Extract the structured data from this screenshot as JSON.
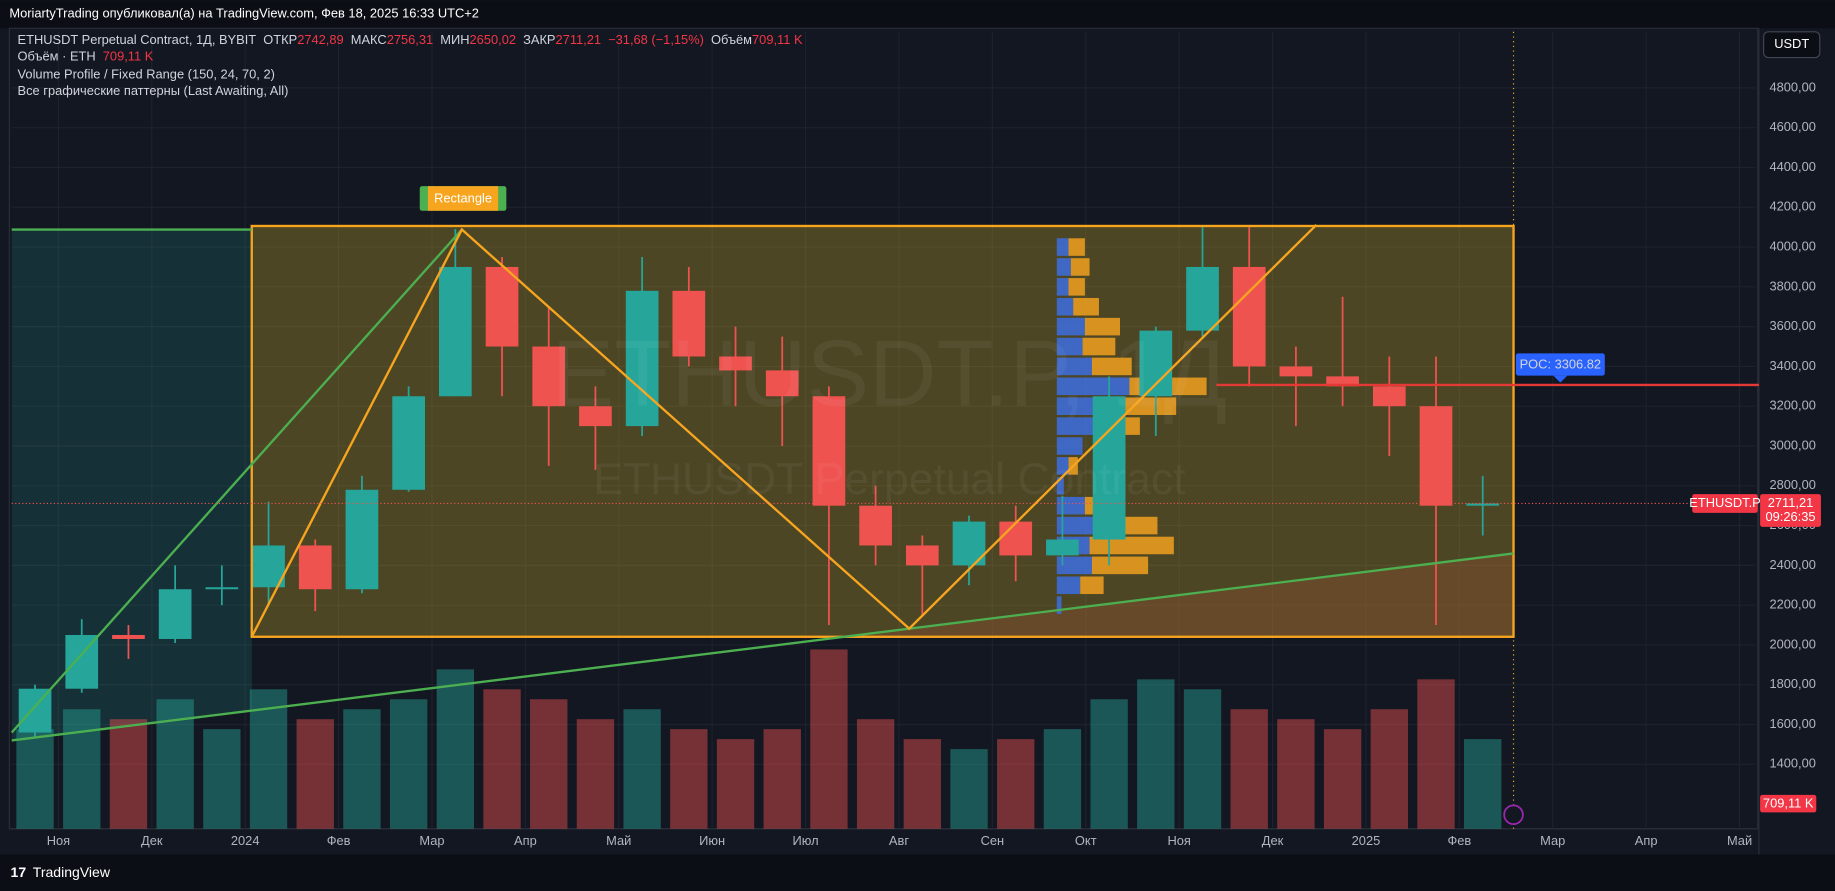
{
  "header": {
    "title": "MoriartyTrading опубликовал(а) на TradingView.com, Фев 18, 2025 16:33 UTC+2"
  },
  "legend": {
    "symbol": "ETHUSDT Perpetual Contract, 1Д, BYBIT",
    "open_label": "ОТКР",
    "open": "2742,89",
    "high_label": "МАКС",
    "high": "2756,31",
    "low_label": "МИН",
    "low": "2650,02",
    "close_label": "ЗАКР",
    "close": "2711,21",
    "change": "−31,68 (−1,15%)",
    "volume_label": "Объём",
    "volume": "709,11 K"
  },
  "indicators": [
    {
      "name": "Объём · ETH",
      "value": "709,11 K"
    },
    {
      "name": "Volume Profile / Fixed Range (150, 24, 70, 2)"
    },
    {
      "name": "Все графические паттерны (Last Awaiting, All)"
    }
  ],
  "currency": "USDT",
  "watermark": {
    "symbol": "ETHUSDT.P, 1Д",
    "description": "ETHUSDT Perpetual Contract"
  },
  "footer": "TradingView",
  "chart_data": {
    "type": "candlestick",
    "x": [
      -0.25,
      0.25,
      0.75,
      1.25,
      1.75,
      2.25,
      2.75,
      3.25,
      3.75,
      4.25,
      4.75,
      5.25,
      5.75,
      6.25,
      6.75,
      7.25,
      7.75,
      8.25,
      8.75,
      9.25,
      9.75,
      10.25,
      10.75,
      11.25,
      11.75,
      12.25,
      12.75,
      13.25,
      13.75,
      14.25,
      14.75,
      15.25
    ],
    "open": [
      1560,
      1780,
      2050,
      2030,
      2280,
      2290,
      2500,
      2280,
      2780,
      3250,
      3900,
      3500,
      3200,
      3100,
      3780,
      3450,
      3380,
      3250,
      2700,
      2500,
      2400,
      2620,
      2450,
      2530,
      3250,
      3580,
      3900,
      3400,
      3350,
      3300,
      3200,
      2700
    ],
    "high": [
      1800,
      2130,
      2100,
      2400,
      2400,
      2720,
      2530,
      2850,
      3300,
      4090,
      3950,
      3700,
      3300,
      3950,
      3900,
      3600,
      3550,
      3300,
      2800,
      2550,
      2650,
      2700,
      2750,
      3350,
      3600,
      4100,
      4100,
      3500,
      3750,
      3450,
      3450,
      2850
    ],
    "low": [
      1530,
      1760,
      1930,
      2010,
      2200,
      2200,
      2170,
      2260,
      2770,
      3250,
      3250,
      2900,
      2880,
      3050,
      3400,
      3200,
      3000,
      2100,
      2400,
      2150,
      2300,
      2320,
      2400,
      2400,
      3050,
      3550,
      3300,
      3100,
      3200,
      2950,
      2100,
      2550
    ],
    "close": [
      1780,
      2050,
      2030,
      2280,
      2290,
      2500,
      2280,
      2780,
      3250,
      3900,
      3500,
      3200,
      3100,
      3780,
      3450,
      3380,
      3250,
      2700,
      2500,
      2400,
      2620,
      2450,
      2530,
      3250,
      3580,
      3900,
      3400,
      3350,
      3300,
      3200,
      2700,
      2711.21
    ],
    "volume": {
      "values": [
        500,
        600,
        550,
        650,
        500,
        700,
        550,
        600,
        650,
        800,
        700,
        650,
        550,
        600,
        500,
        450,
        500,
        900,
        550,
        450,
        400,
        450,
        500,
        650,
        750,
        700,
        600,
        550,
        500,
        600,
        750,
        450
      ],
      "ylim": [
        0,
        4000
      ]
    },
    "xlim": [
      -0.5,
      18.17
    ],
    "xticks": [
      {
        "value": 0,
        "label": "Ноя"
      },
      {
        "value": 1,
        "label": "Дек"
      },
      {
        "value": 2,
        "label": "2024"
      },
      {
        "value": 3,
        "label": "Фев"
      },
      {
        "value": 4,
        "label": "Мар"
      },
      {
        "value": 5,
        "label": "Апр"
      },
      {
        "value": 6,
        "label": "Май"
      },
      {
        "value": 7,
        "label": "Июн"
      },
      {
        "value": 8,
        "label": "Июл"
      },
      {
        "value": 9,
        "label": "Авг"
      },
      {
        "value": 10,
        "label": "Сен"
      },
      {
        "value": 11,
        "label": "Окт"
      },
      {
        "value": 12,
        "label": "Ноя"
      },
      {
        "value": 13,
        "label": "Дек"
      },
      {
        "value": 14,
        "label": "2025"
      },
      {
        "value": 15,
        "label": "Фев"
      },
      {
        "value": 16,
        "label": "Мар"
      },
      {
        "value": 17,
        "label": "Апр"
      },
      {
        "value": 18,
        "label": "Май"
      }
    ],
    "ylim": [
      1076,
      5082
    ],
    "yticks": [
      {
        "value": 1400,
        "label": "1400,00"
      },
      {
        "value": 1600,
        "label": "1600,00"
      },
      {
        "value": 1800,
        "label": "1800,00"
      },
      {
        "value": 2000,
        "label": "2000,00"
      },
      {
        "value": 2200,
        "label": "2200,00"
      },
      {
        "value": 2400,
        "label": "2400,00"
      },
      {
        "value": 2600,
        "label": "2600,00"
      },
      {
        "value": 2800,
        "label": "2800,00"
      },
      {
        "value": 3000,
        "label": "3000,00"
      },
      {
        "value": 3200,
        "label": "3200,00"
      },
      {
        "value": 3400,
        "label": "3400,00"
      },
      {
        "value": 3600,
        "label": "3600,00"
      },
      {
        "value": 3800,
        "label": "3800,00"
      },
      {
        "value": 4000,
        "label": "4000,00"
      },
      {
        "value": 4200,
        "label": "4200,00"
      },
      {
        "value": 4400,
        "label": "4400,00"
      },
      {
        "value": 4600,
        "label": "4600,00"
      },
      {
        "value": 4800,
        "label": "4800,00"
      }
    ],
    "grid": true,
    "up_color": "#26a69a",
    "down_color": "#ef5350",
    "last_price": {
      "value": 2711.21,
      "label": "2711,21",
      "symbol": "ETHUSDT.P",
      "countdown": "09:26:35",
      "volume_label": "709,11 K"
    },
    "poc": {
      "value": 3306.82,
      "label": "POC: 3306.82",
      "x": 12.4
    },
    "rectangle": {
      "label": "Rectangle",
      "x": [
        2.07,
        15.58
      ],
      "y": [
        2041,
        4106
      ],
      "color": "#f7a51f"
    },
    "zigzag": {
      "x": [
        2.07,
        4.32,
        9.11,
        13.47
      ],
      "y": [
        2041,
        4088,
        2082,
        4112
      ],
      "color": "#f7a51f"
    },
    "trendlines": [
      {
        "x": [
          -0.5,
          15.58
        ],
        "y": [
          1520,
          2460
        ],
        "color": "#4caf50"
      },
      {
        "x": [
          -0.5,
          4.32
        ],
        "y": [
          1560,
          4088
        ],
        "color": "#4caf50"
      },
      {
        "x": [
          -0.5,
          2.07
        ],
        "y": [
          4088,
          4088
        ],
        "color": "#4caf50"
      }
    ],
    "volume_profile": {
      "x": 10.69,
      "prices": [
        4000,
        3900,
        3800,
        3700,
        3600,
        3500,
        3400,
        3300,
        3200,
        3100,
        3000,
        2900,
        2800,
        2700,
        2600,
        2500,
        2400,
        2300,
        2200
      ],
      "up": [
        10,
        12,
        10,
        14,
        24,
        22,
        30,
        62,
        52,
        36,
        22,
        10,
        6,
        24,
        44,
        28,
        30,
        20,
        4
      ],
      "down": [
        14,
        16,
        14,
        22,
        30,
        28,
        34,
        66,
        50,
        35,
        0,
        8,
        0,
        22,
        42,
        72,
        48,
        20,
        0
      ],
      "up_color": "#3d6ee0",
      "down_color": "#f0a020"
    }
  }
}
